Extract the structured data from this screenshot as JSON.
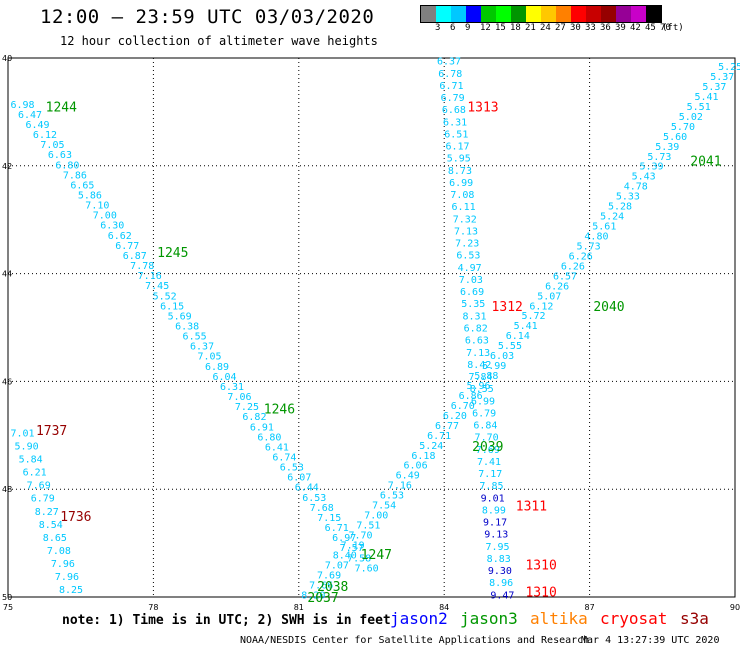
{
  "header": {
    "title": "12:00 – 23:59 UTC 03/03/2020",
    "subtitle": "12 hour collection of altimeter wave heights"
  },
  "legend": {
    "colors": [
      "#808080",
      "#00ffff",
      "#00c8ff",
      "#0000ff",
      "#00c800",
      "#00ff00",
      "#009600",
      "#ffff00",
      "#ffc800",
      "#ff8000",
      "#ff0000",
      "#c80000",
      "#960000",
      "#960096",
      "#c800c8",
      "#000000"
    ],
    "labels": [
      "3",
      "6",
      "9",
      "12",
      "15",
      "18",
      "21",
      "24",
      "27",
      "30",
      "33",
      "36",
      "39",
      "42",
      "45",
      "70",
      "(ft)"
    ]
  },
  "axes": {
    "x_ticks": [
      "75",
      "78",
      "81",
      "84",
      "87",
      "90"
    ],
    "y_ticks": [
      "40",
      "42",
      "44",
      "46",
      "48",
      "50"
    ]
  },
  "footer": {
    "note": "note: 1) Time is in UTC; 2) SWH is in feet",
    "credit": "NOAA/NESDIS Center for Satellite Applications and Research",
    "timestamp": "Mar  4 13:27:39 UTC 2020"
  },
  "satellites": [
    {
      "name": "jason2",
      "color": "#0000ff"
    },
    {
      "name": "jason3",
      "color": "#009600"
    },
    {
      "name": "altika",
      "color": "#ff8000"
    },
    {
      "name": "cryosat",
      "color": "#ff0000"
    },
    {
      "name": "s3a",
      "color": "#960000"
    }
  ],
  "time_labels": [
    {
      "text": "1244",
      "lon": 76.1,
      "lat": 40.9,
      "color": "#009600"
    },
    {
      "text": "1245",
      "lon": 78.4,
      "lat": 43.6,
      "color": "#009600"
    },
    {
      "text": "1246",
      "lon": 80.6,
      "lat": 46.5,
      "color": "#009600"
    },
    {
      "text": "1247",
      "lon": 82.6,
      "lat": 49.2,
      "color": "#009600"
    },
    {
      "text": "2038",
      "lon": 81.7,
      "lat": 49.8,
      "color": "#009600"
    },
    {
      "text": "2037",
      "lon": 81.5,
      "lat": 50.0,
      "color": "#009600"
    },
    {
      "text": "2039",
      "lon": 84.9,
      "lat": 47.2,
      "color": "#009600"
    },
    {
      "text": "2040",
      "lon": 87.4,
      "lat": 44.6,
      "color": "#009600"
    },
    {
      "text": "2041",
      "lon": 89.4,
      "lat": 41.9,
      "color": "#009600"
    },
    {
      "text": "1313",
      "lon": 84.8,
      "lat": 40.9,
      "color": "#ff0000"
    },
    {
      "text": "1312",
      "lon": 85.3,
      "lat": 44.6,
      "color": "#ff0000"
    },
    {
      "text": "1311",
      "lon": 85.8,
      "lat": 48.3,
      "color": "#ff0000"
    },
    {
      "text": "1310",
      "lon": 86.0,
      "lat": 49.4,
      "color": "#ff0000"
    },
    {
      "text": "1310",
      "lon": 86.0,
      "lat": 49.9,
      "color": "#ff0000"
    },
    {
      "text": "1737",
      "lon": 75.9,
      "lat": 46.9,
      "color": "#960000"
    },
    {
      "text": "1736",
      "lon": 76.4,
      "lat": 48.5,
      "color": "#960000"
    }
  ],
  "tracks": [
    {
      "name": "jason3-1244-1247",
      "color": "#00c8ff",
      "lon_start": 75.3,
      "lat_start": 40.85,
      "lon_end": 82.4,
      "lat_end": 49.45,
      "values": [
        "6.98",
        "6.47",
        "6.49",
        "6.12",
        "7.05",
        "6.63",
        "6.80",
        "7.86",
        "6.65",
        "5.86",
        "7.10",
        "7.00",
        "6.30",
        "6.62",
        "6.77",
        "6.87",
        "7.78",
        "7.16",
        "7.45",
        "5.52",
        "6.15",
        "5.69",
        "6.38",
        "6.55",
        "6.37",
        "7.05",
        "6.89",
        "6.04",
        "6.31",
        "7.06",
        "7.25",
        "6.82",
        "6.91",
        "6.80",
        "6.41",
        "6.74",
        "6.53",
        "6.07",
        "6.44",
        "6.53",
        "7.68",
        "7.15",
        "6.71",
        "6.97",
        "7.57",
        "7.58",
        "7.60"
      ]
    },
    {
      "name": "jason3-2037-2041",
      "color": "#00c8ff",
      "lon_start": 81.3,
      "lat_start": 49.95,
      "lon_end": 89.9,
      "lat_end": 40.15,
      "values": [
        "8.20",
        "7.66",
        "7.69",
        "7.07",
        "8.40",
        "7.19",
        "7.70",
        "7.51",
        "7.00",
        "7.54",
        "6.53",
        "7.16",
        "6.49",
        "6.06",
        "6.18",
        "5.24",
        "6.71",
        "6.77",
        "6.20",
        "6.70",
        "6.86",
        "5.96",
        "5.88",
        "5.99",
        "6.03",
        "5.55",
        "6.14",
        "5.41",
        "5.72",
        "6.12",
        "5.07",
        "6.26",
        "6.57",
        "6.26",
        "6.26",
        "5.73",
        "4.80",
        "5.61",
        "5.24",
        "5.28",
        "5.33",
        "4.78",
        "5.43",
        "5.39",
        "5.73",
        "5.39",
        "5.60",
        "5.70",
        "5.02",
        "5.51",
        "5.41",
        "5.37",
        "5.37",
        "5.25"
      ]
    },
    {
      "name": "cryosat-1313-1310",
      "color": "#00c8ff",
      "lon_start": 84.1,
      "lat_start": 40.05,
      "lon_end": 85.2,
      "lat_end": 49.95,
      "values": [
        "6.37",
        "6.78",
        "6.71",
        "6.79",
        "6.68",
        "6.31",
        "6.51",
        "6.17",
        "5.95",
        "8.73",
        "6.99",
        "7.08",
        "6.11",
        "7.32",
        "7.13",
        "7.23",
        "6.53",
        "4.97",
        "7.03",
        "6.69",
        "5.35",
        "8.31",
        "6.82",
        "6.63",
        "7.13",
        "8.42",
        "7.84",
        "8.55",
        "6.99",
        "6.79",
        "6.84",
        "7.70",
        "7.69",
        "7.41",
        "7.17",
        "7.85",
        "9.01",
        "8.99",
        "9.17",
        "9.13",
        "7.95",
        "8.83",
        "9.30",
        "8.96",
        "9.47"
      ]
    },
    {
      "name": "s3a-1737-1736",
      "color": "#00c8ff",
      "lon_start": 75.3,
      "lat_start": 46.95,
      "lon_end": 76.3,
      "lat_end": 49.85,
      "values": [
        "7.01",
        "5.90",
        "5.84",
        "6.21",
        "7.69",
        "6.79",
        "8.27",
        "8.54",
        "8.65",
        "7.08",
        "7.96",
        "7.96",
        "8.25"
      ]
    }
  ]
}
